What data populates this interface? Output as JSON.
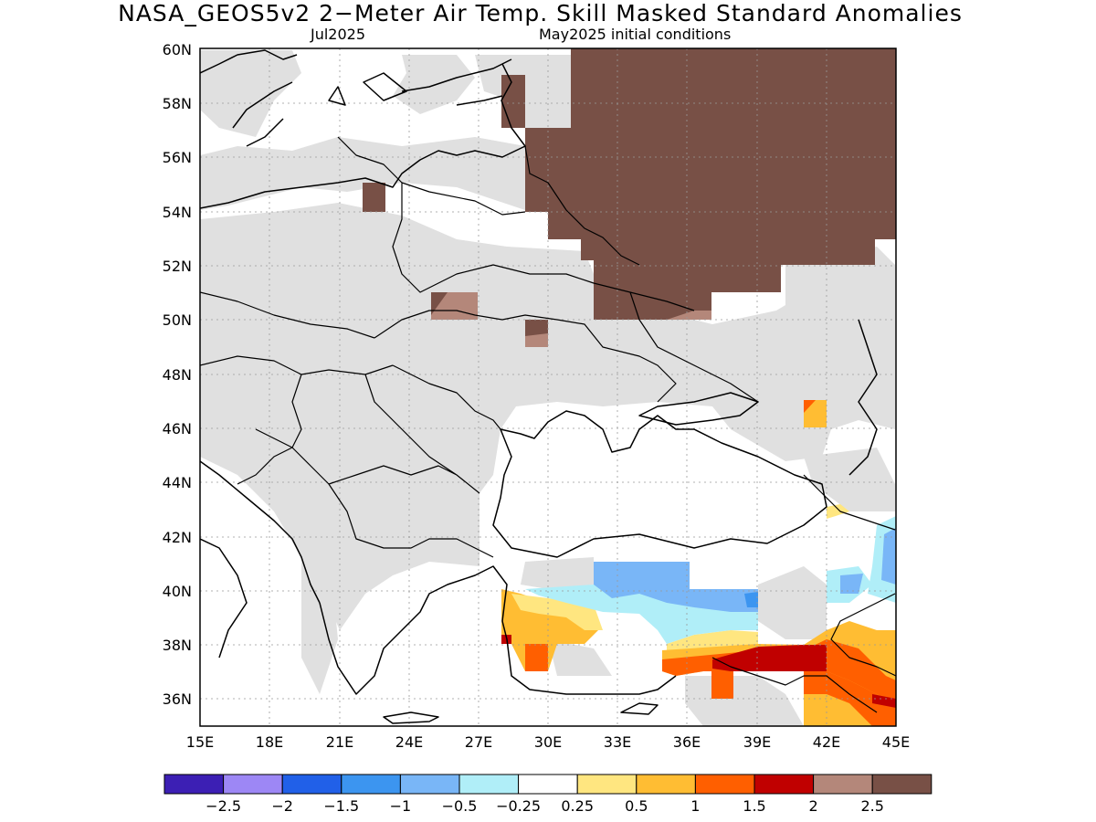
{
  "title": "NASA_GEOS5v2 2−Meter Air Temp. Skill Masked Standard Anomalies",
  "subtitle_left": "Jul2025",
  "subtitle_right": "May2025 initial conditions",
  "map": {
    "lon_range": [
      15,
      45
    ],
    "lat_range": [
      35,
      60
    ],
    "lon_ticks": [
      "15E",
      "18E",
      "21E",
      "24E",
      "27E",
      "30E",
      "33E",
      "36E",
      "39E",
      "42E",
      "45E"
    ],
    "lat_ticks": [
      "60N",
      "58N",
      "56N",
      "54N",
      "52N",
      "50N",
      "48N",
      "46N",
      "44N",
      "42N",
      "40N",
      "38N",
      "36N"
    ],
    "grid": true
  },
  "colorbar": {
    "colors": [
      "#3c1fb4",
      "#9d87f5",
      "#2160e8",
      "#3c95f0",
      "#79b6f7",
      "#b0eef8",
      "#ffffff",
      "#ffe680",
      "#ffbd33",
      "#ff5f00",
      "#c00000",
      "#b4877a",
      "#785046"
    ],
    "labels": [
      "−2.5",
      "−2",
      "−1.5",
      "−1",
      "−0.5",
      "−0.25",
      "0.25",
      "0.5",
      "1",
      "1.5",
      "2",
      "2.5"
    ]
  },
  "colors": {
    "mask_gray": "#e0e0e0",
    "border": "#000000"
  }
}
